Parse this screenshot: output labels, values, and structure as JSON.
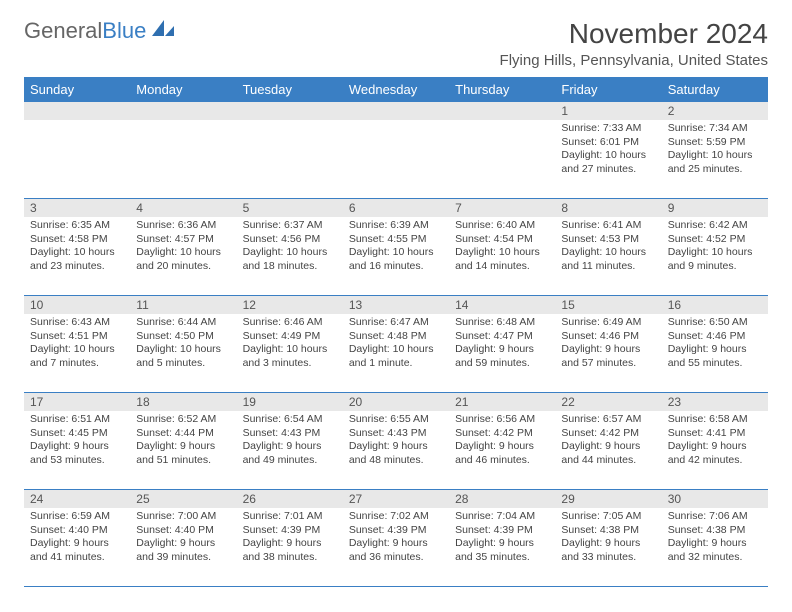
{
  "logo": {
    "text_gen": "General",
    "text_blue": "Blue"
  },
  "title": "November 2024",
  "location": "Flying Hills, Pennsylvania, United States",
  "colors": {
    "header_bg": "#3a7fc4",
    "daynum_bg": "#e8e8e8",
    "border": "#3a7fc4",
    "text": "#444444"
  },
  "day_names": [
    "Sunday",
    "Monday",
    "Tuesday",
    "Wednesday",
    "Thursday",
    "Friday",
    "Saturday"
  ],
  "weeks": [
    [
      {
        "num": "",
        "sunrise": "",
        "sunset": "",
        "daylight": ""
      },
      {
        "num": "",
        "sunrise": "",
        "sunset": "",
        "daylight": ""
      },
      {
        "num": "",
        "sunrise": "",
        "sunset": "",
        "daylight": ""
      },
      {
        "num": "",
        "sunrise": "",
        "sunset": "",
        "daylight": ""
      },
      {
        "num": "",
        "sunrise": "",
        "sunset": "",
        "daylight": ""
      },
      {
        "num": "1",
        "sunrise": "Sunrise: 7:33 AM",
        "sunset": "Sunset: 6:01 PM",
        "daylight": "Daylight: 10 hours and 27 minutes."
      },
      {
        "num": "2",
        "sunrise": "Sunrise: 7:34 AM",
        "sunset": "Sunset: 5:59 PM",
        "daylight": "Daylight: 10 hours and 25 minutes."
      }
    ],
    [
      {
        "num": "3",
        "sunrise": "Sunrise: 6:35 AM",
        "sunset": "Sunset: 4:58 PM",
        "daylight": "Daylight: 10 hours and 23 minutes."
      },
      {
        "num": "4",
        "sunrise": "Sunrise: 6:36 AM",
        "sunset": "Sunset: 4:57 PM",
        "daylight": "Daylight: 10 hours and 20 minutes."
      },
      {
        "num": "5",
        "sunrise": "Sunrise: 6:37 AM",
        "sunset": "Sunset: 4:56 PM",
        "daylight": "Daylight: 10 hours and 18 minutes."
      },
      {
        "num": "6",
        "sunrise": "Sunrise: 6:39 AM",
        "sunset": "Sunset: 4:55 PM",
        "daylight": "Daylight: 10 hours and 16 minutes."
      },
      {
        "num": "7",
        "sunrise": "Sunrise: 6:40 AM",
        "sunset": "Sunset: 4:54 PM",
        "daylight": "Daylight: 10 hours and 14 minutes."
      },
      {
        "num": "8",
        "sunrise": "Sunrise: 6:41 AM",
        "sunset": "Sunset: 4:53 PM",
        "daylight": "Daylight: 10 hours and 11 minutes."
      },
      {
        "num": "9",
        "sunrise": "Sunrise: 6:42 AM",
        "sunset": "Sunset: 4:52 PM",
        "daylight": "Daylight: 10 hours and 9 minutes."
      }
    ],
    [
      {
        "num": "10",
        "sunrise": "Sunrise: 6:43 AM",
        "sunset": "Sunset: 4:51 PM",
        "daylight": "Daylight: 10 hours and 7 minutes."
      },
      {
        "num": "11",
        "sunrise": "Sunrise: 6:44 AM",
        "sunset": "Sunset: 4:50 PM",
        "daylight": "Daylight: 10 hours and 5 minutes."
      },
      {
        "num": "12",
        "sunrise": "Sunrise: 6:46 AM",
        "sunset": "Sunset: 4:49 PM",
        "daylight": "Daylight: 10 hours and 3 minutes."
      },
      {
        "num": "13",
        "sunrise": "Sunrise: 6:47 AM",
        "sunset": "Sunset: 4:48 PM",
        "daylight": "Daylight: 10 hours and 1 minute."
      },
      {
        "num": "14",
        "sunrise": "Sunrise: 6:48 AM",
        "sunset": "Sunset: 4:47 PM",
        "daylight": "Daylight: 9 hours and 59 minutes."
      },
      {
        "num": "15",
        "sunrise": "Sunrise: 6:49 AM",
        "sunset": "Sunset: 4:46 PM",
        "daylight": "Daylight: 9 hours and 57 minutes."
      },
      {
        "num": "16",
        "sunrise": "Sunrise: 6:50 AM",
        "sunset": "Sunset: 4:46 PM",
        "daylight": "Daylight: 9 hours and 55 minutes."
      }
    ],
    [
      {
        "num": "17",
        "sunrise": "Sunrise: 6:51 AM",
        "sunset": "Sunset: 4:45 PM",
        "daylight": "Daylight: 9 hours and 53 minutes."
      },
      {
        "num": "18",
        "sunrise": "Sunrise: 6:52 AM",
        "sunset": "Sunset: 4:44 PM",
        "daylight": "Daylight: 9 hours and 51 minutes."
      },
      {
        "num": "19",
        "sunrise": "Sunrise: 6:54 AM",
        "sunset": "Sunset: 4:43 PM",
        "daylight": "Daylight: 9 hours and 49 minutes."
      },
      {
        "num": "20",
        "sunrise": "Sunrise: 6:55 AM",
        "sunset": "Sunset: 4:43 PM",
        "daylight": "Daylight: 9 hours and 48 minutes."
      },
      {
        "num": "21",
        "sunrise": "Sunrise: 6:56 AM",
        "sunset": "Sunset: 4:42 PM",
        "daylight": "Daylight: 9 hours and 46 minutes."
      },
      {
        "num": "22",
        "sunrise": "Sunrise: 6:57 AM",
        "sunset": "Sunset: 4:42 PM",
        "daylight": "Daylight: 9 hours and 44 minutes."
      },
      {
        "num": "23",
        "sunrise": "Sunrise: 6:58 AM",
        "sunset": "Sunset: 4:41 PM",
        "daylight": "Daylight: 9 hours and 42 minutes."
      }
    ],
    [
      {
        "num": "24",
        "sunrise": "Sunrise: 6:59 AM",
        "sunset": "Sunset: 4:40 PM",
        "daylight": "Daylight: 9 hours and 41 minutes."
      },
      {
        "num": "25",
        "sunrise": "Sunrise: 7:00 AM",
        "sunset": "Sunset: 4:40 PM",
        "daylight": "Daylight: 9 hours and 39 minutes."
      },
      {
        "num": "26",
        "sunrise": "Sunrise: 7:01 AM",
        "sunset": "Sunset: 4:39 PM",
        "daylight": "Daylight: 9 hours and 38 minutes."
      },
      {
        "num": "27",
        "sunrise": "Sunrise: 7:02 AM",
        "sunset": "Sunset: 4:39 PM",
        "daylight": "Daylight: 9 hours and 36 minutes."
      },
      {
        "num": "28",
        "sunrise": "Sunrise: 7:04 AM",
        "sunset": "Sunset: 4:39 PM",
        "daylight": "Daylight: 9 hours and 35 minutes."
      },
      {
        "num": "29",
        "sunrise": "Sunrise: 7:05 AM",
        "sunset": "Sunset: 4:38 PM",
        "daylight": "Daylight: 9 hours and 33 minutes."
      },
      {
        "num": "30",
        "sunrise": "Sunrise: 7:06 AM",
        "sunset": "Sunset: 4:38 PM",
        "daylight": "Daylight: 9 hours and 32 minutes."
      }
    ]
  ]
}
